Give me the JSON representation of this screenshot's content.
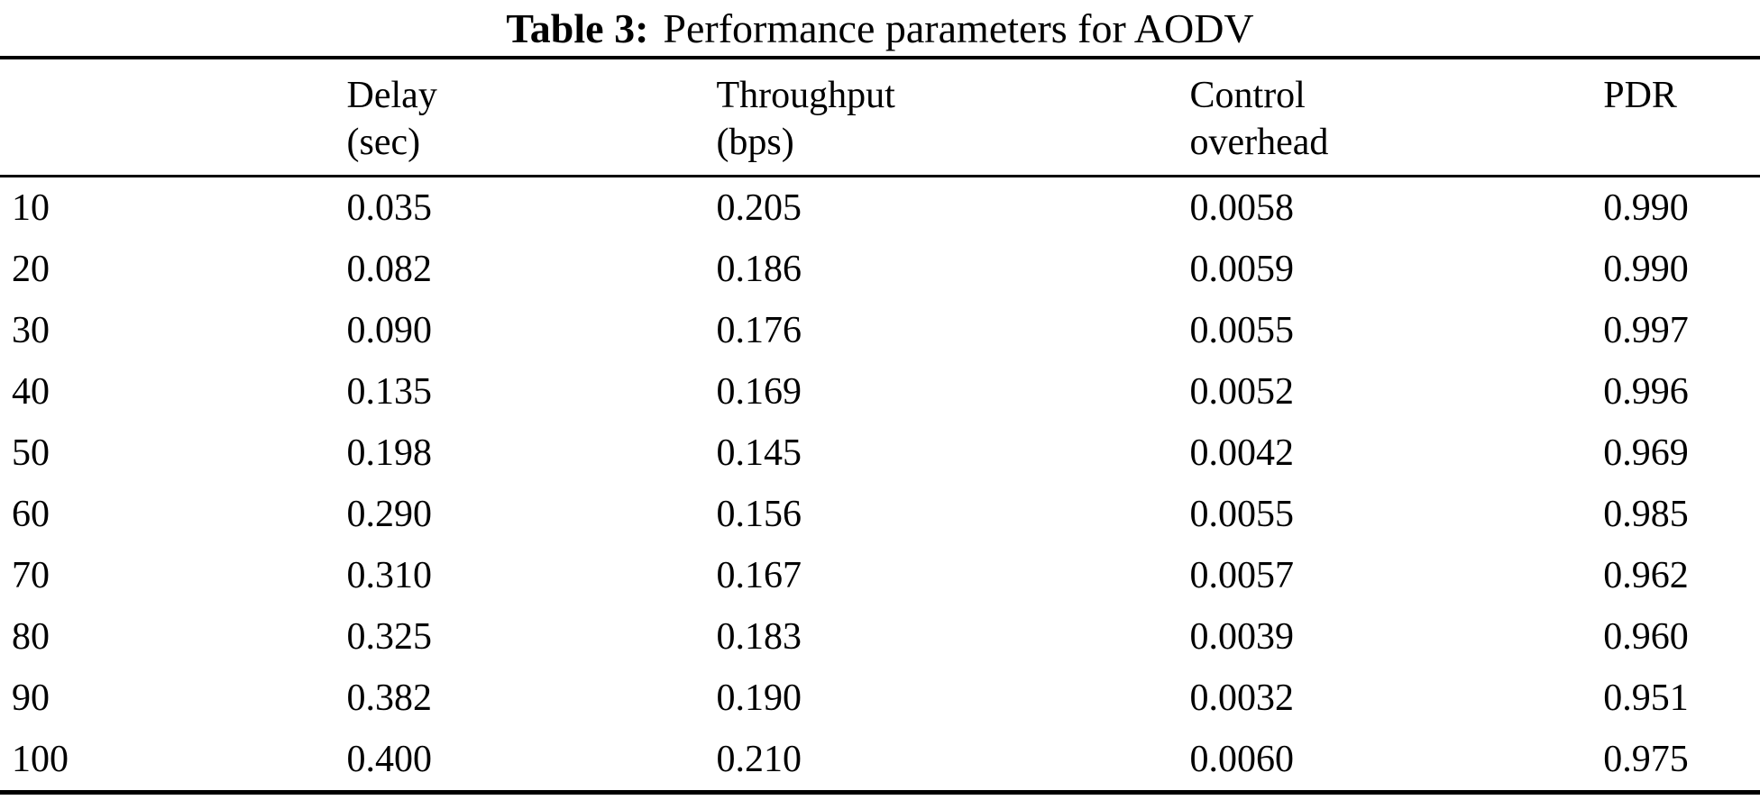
{
  "title": {
    "prefix": "Table 3:",
    "text": "Performance parameters for AODV"
  },
  "table": {
    "columns": [
      {
        "label": "",
        "sub": ""
      },
      {
        "label": "Delay",
        "sub": "(sec)"
      },
      {
        "label": "Throughput",
        "sub": "(bps)"
      },
      {
        "label": "Control",
        "sub": "overhead"
      },
      {
        "label": "PDR",
        "sub": ""
      }
    ],
    "rows": [
      [
        "10",
        "0.035",
        "0.205",
        "0.0058",
        "0.990"
      ],
      [
        "20",
        "0.082",
        "0.186",
        "0.0059",
        "0.990"
      ],
      [
        "30",
        "0.090",
        "0.176",
        "0.0055",
        "0.997"
      ],
      [
        "40",
        "0.135",
        "0.169",
        "0.0052",
        "0.996"
      ],
      [
        "50",
        "0.198",
        "0.145",
        "0.0042",
        "0.969"
      ],
      [
        "60",
        "0.290",
        "0.156",
        "0.0055",
        "0.985"
      ],
      [
        "70",
        "0.310",
        "0.167",
        "0.0057",
        "0.962"
      ],
      [
        "80",
        "0.325",
        "0.183",
        "0.0039",
        "0.960"
      ],
      [
        "90",
        "0.382",
        "0.190",
        "0.0032",
        "0.951"
      ],
      [
        "100",
        "0.400",
        "0.210",
        "0.0060",
        "0.975"
      ]
    ]
  }
}
